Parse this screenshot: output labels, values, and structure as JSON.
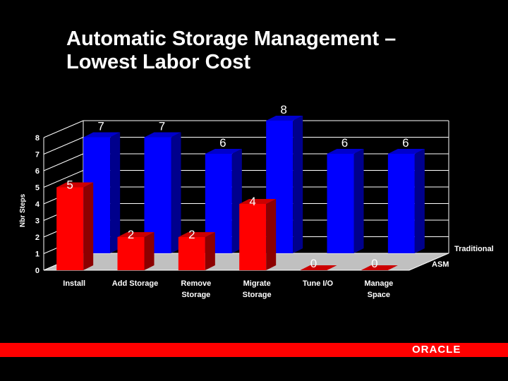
{
  "slide": {
    "title_line1": "Automatic Storage Management –",
    "title_line2": "Lowest Labor Cost",
    "logo_text": "ORACLE",
    "footer_color": "#ff0000",
    "background": "#000000"
  },
  "chart_data": {
    "type": "bar",
    "style": "3d-clustered-depth",
    "ylabel": "Nbr Steps",
    "ylim": [
      0,
      8
    ],
    "yticks": [
      "0",
      "1",
      "2",
      "3",
      "4",
      "5",
      "6",
      "7",
      "8"
    ],
    "categories": [
      [
        "Install"
      ],
      [
        "Add Storage"
      ],
      [
        "Remove",
        "Storage"
      ],
      [
        "Migrate",
        "Storage"
      ],
      [
        "Tune I/O"
      ],
      [
        "Manage",
        "Space"
      ]
    ],
    "series": [
      {
        "name": "Traditional",
        "color": "#0000ff",
        "values": [
          7,
          7,
          6,
          8,
          6,
          6
        ],
        "labels": [
          "7",
          "7",
          "6",
          "8",
          "6",
          "6"
        ]
      },
      {
        "name": "ASM",
        "color": "#ff0000",
        "values": [
          5,
          2,
          2,
          4,
          0,
          0
        ],
        "labels": [
          "5",
          "2",
          "2",
          "4",
          "0",
          "0"
        ]
      }
    ],
    "grid": true,
    "legend": "right (depth axis labels)"
  }
}
